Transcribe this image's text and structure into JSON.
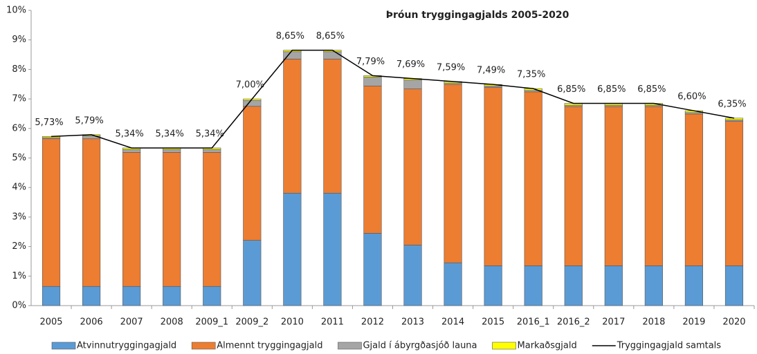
{
  "chart_data": {
    "type": "bar",
    "stacked": true,
    "title": "Þróun tryggingagjalds 2005-2020",
    "categories": [
      "2005",
      "2006",
      "2007",
      "2008",
      "2009_1",
      "2009_2",
      "2010",
      "2011",
      "2012",
      "2013",
      "2014",
      "2015",
      "2016_1",
      "2016_2",
      "2017",
      "2018",
      "2019",
      "2020"
    ],
    "series": [
      {
        "name": "Atvinnutryggingagjald",
        "color": "#5b9bd5",
        "values": [
          0.65,
          0.65,
          0.65,
          0.65,
          0.65,
          2.21,
          3.81,
          3.81,
          2.45,
          2.05,
          1.45,
          1.35,
          1.35,
          1.35,
          1.35,
          1.35,
          1.35,
          1.35
        ]
      },
      {
        "name": "Almennt tryggingagjald",
        "color": "#ed7d31",
        "values": [
          5.0,
          5.0,
          4.54,
          4.54,
          4.54,
          4.54,
          4.54,
          4.54,
          4.99,
          5.29,
          6.04,
          6.04,
          5.89,
          5.39,
          5.39,
          5.39,
          5.14,
          4.89
        ]
      },
      {
        "name": "Gjald í ábyrgðasjóð launa",
        "color": "#a5a5a5",
        "values": [
          0.04,
          0.1,
          0.1,
          0.1,
          0.1,
          0.2,
          0.25,
          0.25,
          0.3,
          0.3,
          0.05,
          0.05,
          0.05,
          0.05,
          0.05,
          0.05,
          0.05,
          0.05
        ]
      },
      {
        "name": "Markaðsgjald",
        "color": "#ffff00",
        "values": [
          0.04,
          0.04,
          0.05,
          0.05,
          0.05,
          0.05,
          0.05,
          0.05,
          0.05,
          0.05,
          0.05,
          0.05,
          0.06,
          0.06,
          0.06,
          0.06,
          0.06,
          0.06
        ]
      },
      {
        "name": "Tryggingagjald samtals",
        "color": "#000000",
        "type": "line",
        "values": [
          5.73,
          5.79,
          5.34,
          5.34,
          5.34,
          7.0,
          8.65,
          8.65,
          7.79,
          7.69,
          7.59,
          7.49,
          7.35,
          6.85,
          6.85,
          6.85,
          6.6,
          6.35
        ],
        "value_labels": [
          "5,73%",
          "5,79%",
          "5,34%",
          "5,34%",
          "5,34%",
          "7,00%",
          "8,65%",
          "8,65%",
          "7,79%",
          "7,69%",
          "7,59%",
          "7,49%",
          "7,35%",
          "6,85%",
          "6,85%",
          "6,85%",
          "6,60%",
          "6,35%"
        ]
      }
    ],
    "ylim": [
      0,
      10
    ],
    "yticks": [
      {
        "value": 0,
        "label": "0%"
      },
      {
        "value": 1,
        "label": "1%"
      },
      {
        "value": 2,
        "label": "2%"
      },
      {
        "value": 3,
        "label": "3%"
      },
      {
        "value": 4,
        "label": "4%"
      },
      {
        "value": 5,
        "label": "5%"
      },
      {
        "value": 6,
        "label": "6%"
      },
      {
        "value": 7,
        "label": "7%"
      },
      {
        "value": 8,
        "label": "8%"
      },
      {
        "value": 9,
        "label": "9%"
      },
      {
        "value": 10,
        "label": "10%"
      }
    ],
    "grid": false,
    "legend": "bottom"
  }
}
